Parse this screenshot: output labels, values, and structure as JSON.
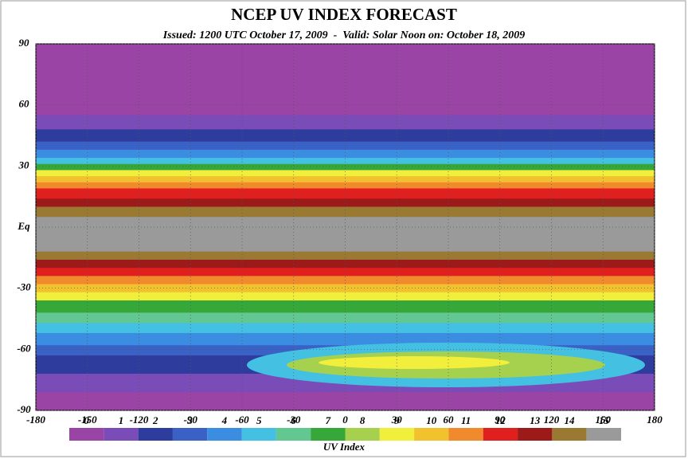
{
  "header": {
    "title": "NCEP UV INDEX FORECAST",
    "subtitle": "Issued: 1200 UTC October 17, 2009  -  Valid: Solar Noon on: October 18, 2009"
  },
  "map": {
    "xlim": [
      -180,
      180
    ],
    "xticks": [
      -180,
      -150,
      -120,
      -90,
      -60,
      -30,
      0,
      30,
      60,
      90,
      120,
      150,
      180
    ],
    "ylim": [
      -90,
      90
    ],
    "yticks": [
      90,
      60,
      30,
      {
        "value": 0,
        "label": "Eq"
      },
      -30,
      -60,
      -90
    ],
    "grid": true
  },
  "legend": {
    "title": "UV Index",
    "levels": [
      {
        "label": 0,
        "color": "#9a44a6"
      },
      {
        "label": 1,
        "color": "#7a4cb8"
      },
      {
        "label": 2,
        "color": "#2e3c9e"
      },
      {
        "label": 3,
        "color": "#3a62c6"
      },
      {
        "label": 4,
        "color": "#3a8de0"
      },
      {
        "label": 5,
        "color": "#44c0e2"
      },
      {
        "label": 6,
        "color": "#62c790"
      },
      {
        "label": 7,
        "color": "#36a83a"
      },
      {
        "label": 8,
        "color": "#a6d14e"
      },
      {
        "label": 9,
        "color": "#f2ee3c"
      },
      {
        "label": 10,
        "color": "#f2c22e"
      },
      {
        "label": 11,
        "color": "#f08a2c"
      },
      {
        "label": 12,
        "color": "#e0201e"
      },
      {
        "label": 13,
        "color": "#9c1a1a"
      },
      {
        "label": 14,
        "color": "#9a7a32"
      },
      {
        "label": 15,
        "color": "#9a9a9a"
      }
    ]
  }
}
